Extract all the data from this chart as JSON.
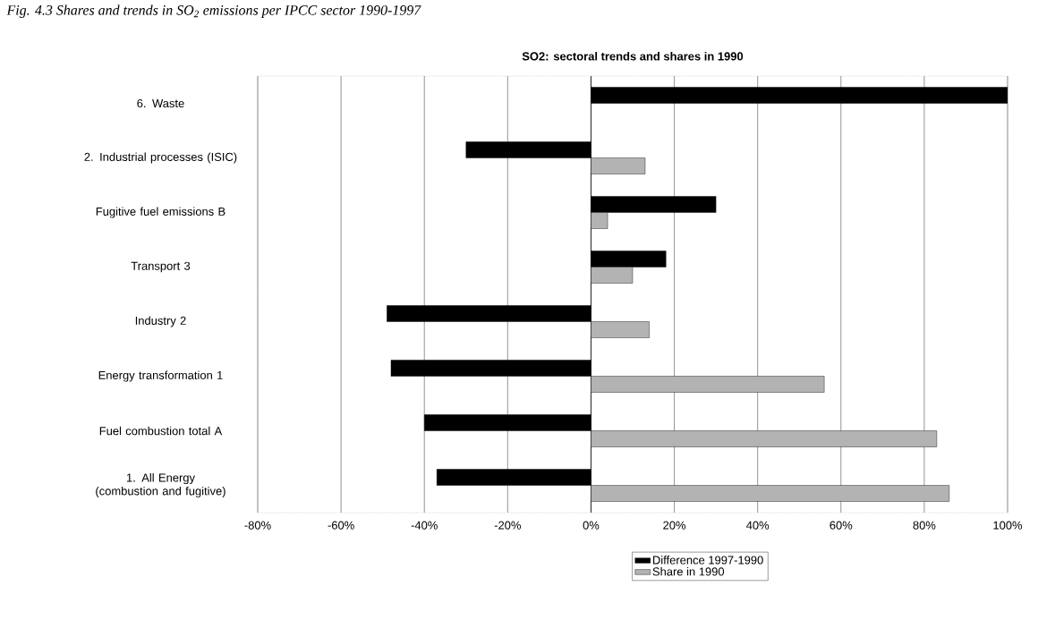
{
  "chart_data": {
    "type": "bar",
    "orientation": "horizontal",
    "title": "SO2: sectoral trends and shares in 1990",
    "annotations": [
      "Fig. 4.3 Shares and trends in SO$_{2}$ emissions per IPCC sector 1990-1997"
    ],
    "categories": [
      "6. Waste",
      "2. Industrial processes (ISIC)",
      "Fugitive fuel emissions B",
      "Transport 3",
      "Industry 2",
      "Energy transformation 1",
      "Fuel combustion total A",
      "1. All Energy (combustion and fugitive)"
    ],
    "series": [
      {
        "name": "Difference 1997-1990",
        "color": "#000000",
        "values": [
          100,
          -30,
          30,
          18,
          -49,
          -48,
          -40,
          -37
        ]
      },
      {
        "name": "Share in 1990",
        "color": "#b3b3b3",
        "values": [
          null,
          13,
          4,
          10,
          14,
          56,
          83,
          86
        ]
      }
    ],
    "xlim": [
      -80,
      100
    ],
    "xticks": [
      {
        "value": -80,
        "label": "-80%"
      },
      {
        "value": -60,
        "label": "-60%"
      },
      {
        "value": -40,
        "label": "-40%"
      },
      {
        "value": -20,
        "label": "-20%"
      },
      {
        "value": 0,
        "label": "0%"
      },
      {
        "value": 20,
        "label": "20%"
      },
      {
        "value": 40,
        "label": "40%"
      },
      {
        "value": 60,
        "label": "60%"
      },
      {
        "value": 80,
        "label": "80%"
      },
      {
        "value": 100,
        "label": "100%"
      }
    ],
    "grid": "x",
    "legend": "bottom"
  }
}
